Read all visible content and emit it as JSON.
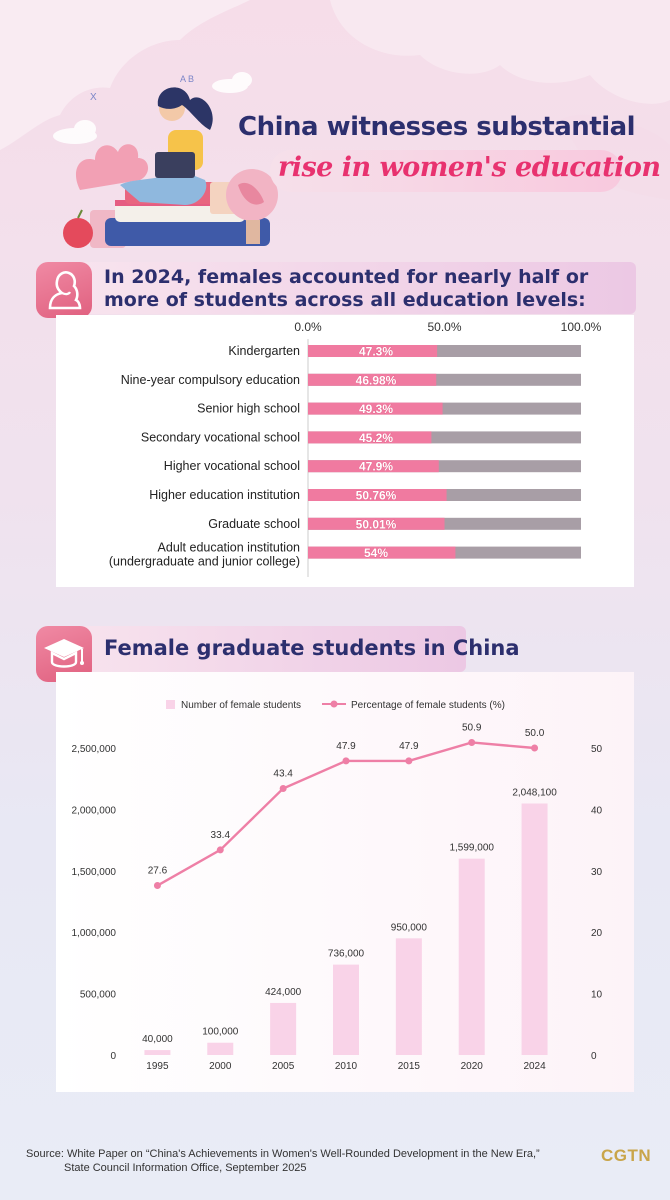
{
  "header": {
    "title_line1": "China witnesses substantial",
    "title_line2": "rise in women's education",
    "colors": {
      "navy": "#2c2f6e",
      "pink": "#e8326f"
    }
  },
  "section1": {
    "title": "In 2024, females accounted for nearly half or more of students across all education levels:",
    "icon": "woman-profile-icon"
  },
  "section2": {
    "title": "Female graduate students in China",
    "icon": "graduation-cap-icon"
  },
  "chart_data": [
    {
      "type": "bar",
      "orientation": "horizontal",
      "stacked_to": 100,
      "x_tick_labels": [
        "0.0%",
        "50.0%",
        "100.0%"
      ],
      "categories": [
        "Kindergarten",
        "Nine-year compulsory education",
        "Senior high school",
        "Secondary vocational school",
        "Higher vocational school",
        "Higher education institution",
        "Graduate school",
        "Adult education institution"
      ],
      "category_sublabels": [
        "",
        "",
        "",
        "",
        "",
        "",
        "",
        "(undergraduate and junior college)"
      ],
      "values": [
        47.3,
        46.98,
        49.3,
        45.2,
        47.9,
        50.76,
        50.01,
        54
      ],
      "value_labels": [
        "47.3%",
        "46.98%",
        "49.3%",
        "45.2%",
        "47.9%",
        "50.76%",
        "50.01%",
        "54%"
      ],
      "colors": {
        "female": "#f07aa0",
        "rest": "#a89ea6"
      }
    },
    {
      "type": "bar",
      "combo": "bar+line",
      "categories": [
        "1995",
        "2000",
        "2005",
        "2010",
        "2015",
        "2020",
        "2024"
      ],
      "series": [
        {
          "name": "Number of female students",
          "type": "bar",
          "axis": "left",
          "values": [
            40000,
            100000,
            424000,
            736000,
            950000,
            1599000,
            2048100
          ],
          "labels": [
            "40,000",
            "100,000",
            "424,000",
            "736,000",
            "950,000",
            "1,599,000",
            "2,048,100"
          ],
          "color": "#f9d3e8"
        },
        {
          "name": "Percentage of female students (%)",
          "type": "line",
          "axis": "right",
          "values": [
            27.6,
            33.4,
            43.4,
            47.9,
            47.9,
            50.9,
            50.0
          ],
          "labels": [
            "27.6",
            "33.4",
            "43.4",
            "47.9",
            "47.9",
            "50.9",
            "50.0"
          ],
          "color": "#ee7fa6"
        }
      ],
      "y_left": {
        "ylim": [
          0,
          2500000
        ],
        "tick_labels": [
          "0",
          "500,000",
          "1,000,000",
          "1,500,000",
          "2,000,000",
          "2,500,000"
        ]
      },
      "y_right": {
        "ylim": [
          0,
          50
        ],
        "tick_labels": [
          "0",
          "10",
          "20",
          "30",
          "40",
          "50"
        ]
      },
      "legend_position": "top-center"
    }
  ],
  "footer": {
    "source_line1": "Source: White Paper on “China's Achievements in Women's Well-Rounded Development in the New Era,”",
    "source_line2": "State Council Information Office, September 2025",
    "logo": "CGTN"
  }
}
